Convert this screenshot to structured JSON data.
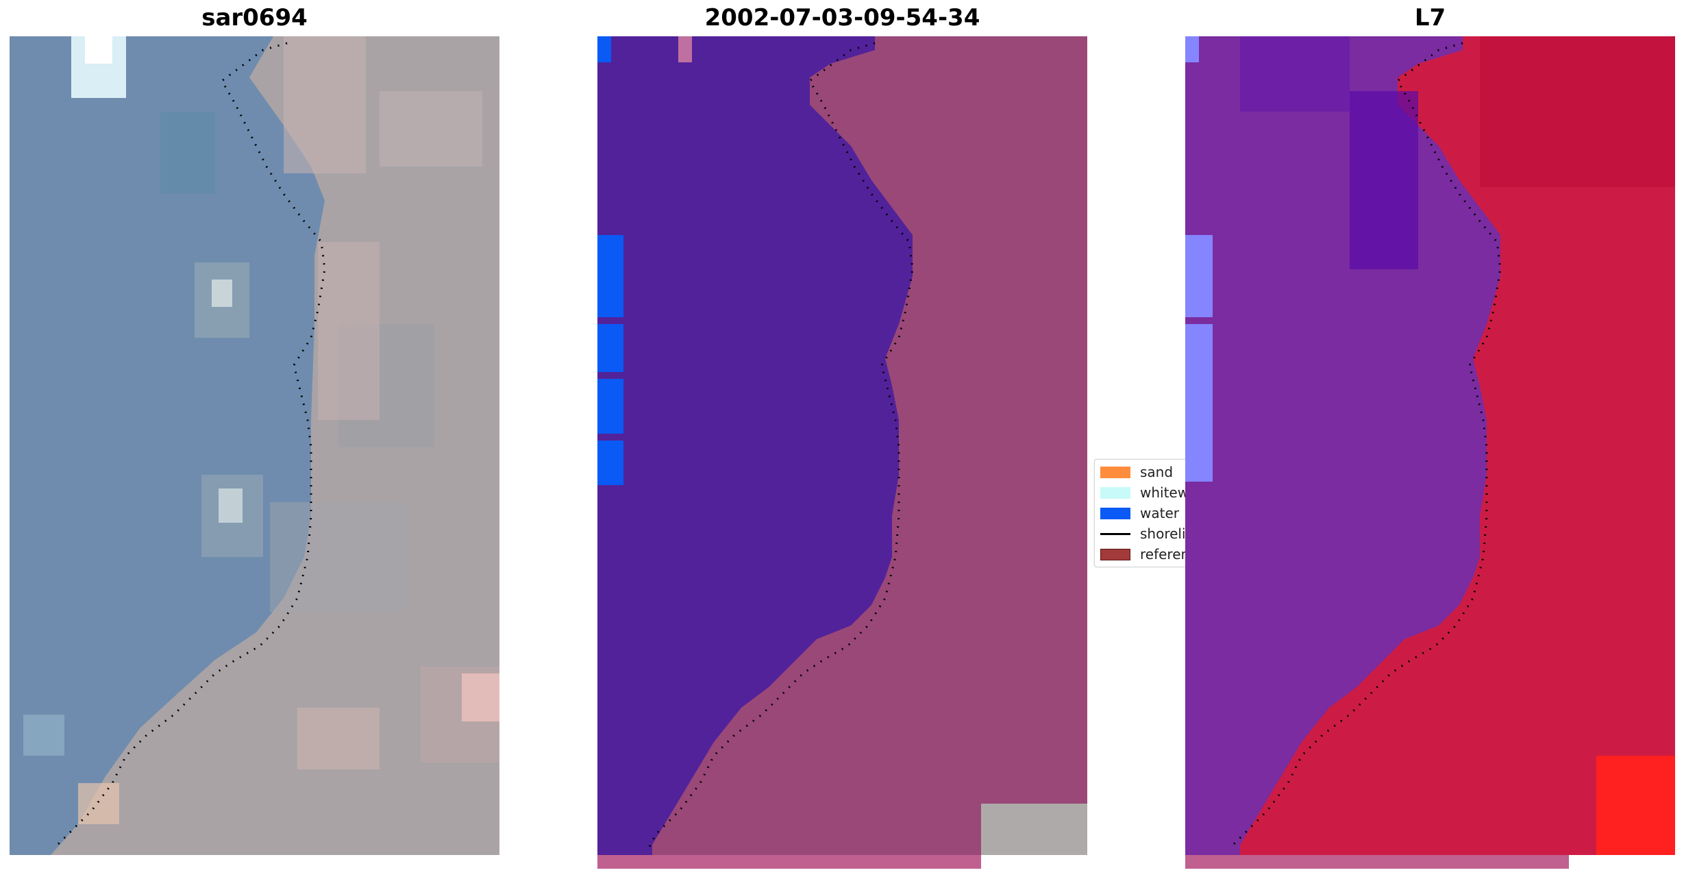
{
  "panels": {
    "rgb": {
      "title": "sar0694"
    },
    "classified": {
      "title": "2002-07-03-09-54-34"
    },
    "mndwi": {
      "title": "L7"
    }
  },
  "legend": {
    "items": [
      {
        "label": "sand",
        "color": "#ff8c3c",
        "kind": "patch"
      },
      {
        "label": "whitewater",
        "color": "#c8fafa",
        "kind": "patch"
      },
      {
        "label": "water",
        "color": "#0a5af5",
        "kind": "patch"
      },
      {
        "label": "shoreline",
        "color": "#000000",
        "kind": "line"
      },
      {
        "label": "reference",
        "color": "#a33a3a",
        "kind": "patch"
      }
    ]
  },
  "colors": {
    "water_class": "#52229a",
    "land_classified": "#9a4878",
    "water_strip": "#0a5af5",
    "mndwi_water": "#7a2ca0",
    "mndwi_land": "#cc1c45",
    "rgb_water": "#6f8cae",
    "rgb_land": "#a9a3a6",
    "strip_bottom": "#c06090"
  }
}
